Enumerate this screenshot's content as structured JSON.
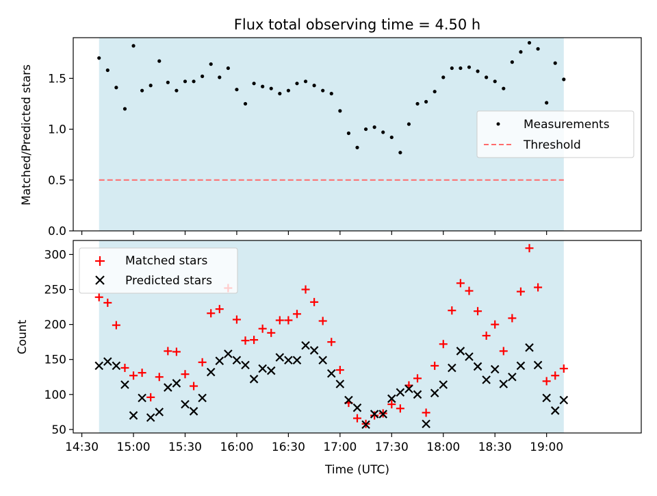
{
  "figure": {
    "title": "Flux total observing time = 4.50 h",
    "xlabel": "Time (UTC)",
    "x_ticks": [
      "14:30",
      "15:00",
      "15:30",
      "16:00",
      "16:30",
      "17:00",
      "17:30",
      "18:00",
      "18:30",
      "19:00"
    ]
  },
  "colors": {
    "shade": "#add8e6",
    "measurement": "#000000",
    "threshold": "#ff6b6b",
    "matched": "#ff0000",
    "predicted": "#000000"
  },
  "chart_data": [
    {
      "type": "scatter",
      "ylabel": "Matched/Predicted stars",
      "ylim": [
        0,
        1.9
      ],
      "y_ticks": [
        "0.0",
        "0.5",
        "1.0",
        "1.5"
      ],
      "xlim": [
        "14:25",
        "19:55"
      ],
      "observing_window": [
        "14:40",
        "19:10"
      ],
      "legend_position": "center-right",
      "series": [
        {
          "name": "Measurements",
          "marker": "dot",
          "x": [
            "14:40",
            "14:45",
            "14:50",
            "14:55",
            "15:00",
            "15:05",
            "15:10",
            "15:15",
            "15:20",
            "15:25",
            "15:30",
            "15:35",
            "15:40",
            "15:45",
            "15:50",
            "15:55",
            "16:00",
            "16:05",
            "16:10",
            "16:15",
            "16:20",
            "16:25",
            "16:30",
            "16:35",
            "16:40",
            "16:45",
            "16:50",
            "16:55",
            "17:00",
            "17:05",
            "17:10",
            "17:15",
            "17:20",
            "17:25",
            "17:30",
            "17:35",
            "17:40",
            "17:45",
            "17:50",
            "17:55",
            "18:00",
            "18:05",
            "18:10",
            "18:15",
            "18:20",
            "18:25",
            "18:30",
            "18:35",
            "18:40",
            "18:45",
            "18:50",
            "18:55",
            "19:00",
            "19:05",
            "19:10"
          ],
          "y": [
            1.7,
            1.58,
            1.41,
            1.2,
            1.82,
            1.38,
            1.43,
            1.67,
            1.46,
            1.38,
            1.47,
            1.47,
            1.52,
            1.64,
            1.51,
            1.6,
            1.39,
            1.25,
            1.45,
            1.42,
            1.4,
            1.35,
            1.38,
            1.45,
            1.47,
            1.43,
            1.38,
            1.35,
            1.18,
            0.96,
            0.82,
            1.0,
            1.02,
            0.97,
            0.92,
            0.77,
            1.05,
            1.25,
            1.27,
            1.37,
            1.51,
            1.6,
            1.6,
            1.61,
            1.57,
            1.51,
            1.47,
            1.4,
            1.66,
            1.76,
            1.85,
            1.79,
            1.26,
            1.65,
            1.49
          ]
        },
        {
          "name": "Threshold",
          "type": "line",
          "style": "dashed",
          "x": [
            "14:40",
            "19:10"
          ],
          "y": [
            0.5,
            0.5
          ]
        }
      ]
    },
    {
      "type": "scatter",
      "ylabel": "Count",
      "ylim": [
        45,
        320
      ],
      "y_ticks": [
        "50",
        "100",
        "150",
        "200",
        "250",
        "300"
      ],
      "xlim": [
        "14:25",
        "19:55"
      ],
      "observing_window": [
        "14:40",
        "19:10"
      ],
      "legend_position": "upper-left",
      "series": [
        {
          "name": "Matched stars",
          "marker": "plus",
          "x": [
            "14:40",
            "14:45",
            "14:50",
            "14:55",
            "15:00",
            "15:05",
            "15:10",
            "15:15",
            "15:20",
            "15:25",
            "15:30",
            "15:35",
            "15:40",
            "15:45",
            "15:50",
            "15:55",
            "16:00",
            "16:05",
            "16:10",
            "16:15",
            "16:20",
            "16:25",
            "16:30",
            "16:35",
            "16:40",
            "16:45",
            "16:50",
            "16:55",
            "17:00",
            "17:05",
            "17:10",
            "17:15",
            "17:20",
            "17:25",
            "17:30",
            "17:35",
            "17:40",
            "17:45",
            "17:50",
            "17:55",
            "18:00",
            "18:05",
            "18:10",
            "18:15",
            "18:20",
            "18:25",
            "18:30",
            "18:35",
            "18:40",
            "18:45",
            "18:50",
            "18:55",
            "19:00",
            "19:05",
            "19:10"
          ],
          "y": [
            239,
            231,
            199,
            138,
            127,
            131,
            96,
            125,
            162,
            161,
            129,
            112,
            146,
            216,
            222,
            252,
            207,
            177,
            178,
            194,
            188,
            206,
            206,
            215,
            250,
            232,
            205,
            175,
            135,
            88,
            66,
            58,
            70,
            73,
            86,
            80,
            113,
            123,
            74,
            141,
            172,
            220,
            259,
            248,
            219,
            184,
            200,
            162,
            209,
            247,
            309,
            253,
            119,
            127,
            137
          ]
        },
        {
          "name": "Predicted stars",
          "marker": "x",
          "x": [
            "14:40",
            "14:45",
            "14:50",
            "14:55",
            "15:00",
            "15:05",
            "15:10",
            "15:15",
            "15:20",
            "15:25",
            "15:30",
            "15:35",
            "15:40",
            "15:45",
            "15:50",
            "15:55",
            "16:00",
            "16:05",
            "16:10",
            "16:15",
            "16:20",
            "16:25",
            "16:30",
            "16:35",
            "16:40",
            "16:45",
            "16:50",
            "16:55",
            "17:00",
            "17:05",
            "17:10",
            "17:15",
            "17:20",
            "17:25",
            "17:30",
            "17:35",
            "17:40",
            "17:45",
            "17:50",
            "17:55",
            "18:00",
            "18:05",
            "18:10",
            "18:15",
            "18:20",
            "18:25",
            "18:30",
            "18:35",
            "18:40",
            "18:45",
            "18:50",
            "18:55",
            "19:00",
            "19:05",
            "19:10"
          ],
          "y": [
            141,
            147,
            141,
            114,
            70,
            95,
            67,
            75,
            110,
            116,
            86,
            76,
            95,
            132,
            148,
            158,
            149,
            142,
            122,
            137,
            134,
            153,
            149,
            149,
            170,
            163,
            149,
            130,
            115,
            92,
            81,
            57,
            72,
            72,
            94,
            103,
            108,
            100,
            58,
            102,
            114,
            138,
            162,
            154,
            140,
            121,
            136,
            115,
            125,
            141,
            167,
            142,
            95,
            77,
            92
          ]
        }
      ]
    }
  ]
}
